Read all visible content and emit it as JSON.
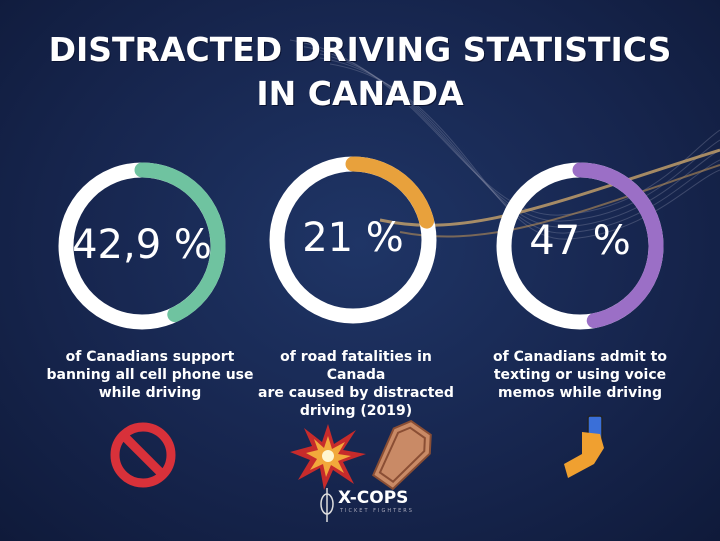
{
  "title_line1": "DISTRACTED DRIVING STATISTICS",
  "title_line2": "IN CANADA",
  "stats": [
    {
      "value": "42,9 %",
      "fraction": 0.429,
      "color": "#6fc3a0",
      "caption": [
        "of Canadians support",
        "banning all cell phone use",
        "while driving"
      ],
      "icon": "prohibited-icon"
    },
    {
      "value": "21 %",
      "fraction": 0.21,
      "color": "#e8a13c",
      "caption": [
        "of road fatalities in Canada",
        "are caused by distracted",
        "driving (2019)"
      ],
      "icon": "collision-and-coffin-icon"
    },
    {
      "value": "47 %",
      "fraction": 0.47,
      "color": "#9b6fc6",
      "caption": [
        "of Canadians admit to",
        "texting or using voice",
        "memos while driving"
      ],
      "icon": "hand-holding-phone-icon"
    }
  ],
  "logo": {
    "name": "X-COPS",
    "tagline": "TICKET FIGHTERS"
  }
}
